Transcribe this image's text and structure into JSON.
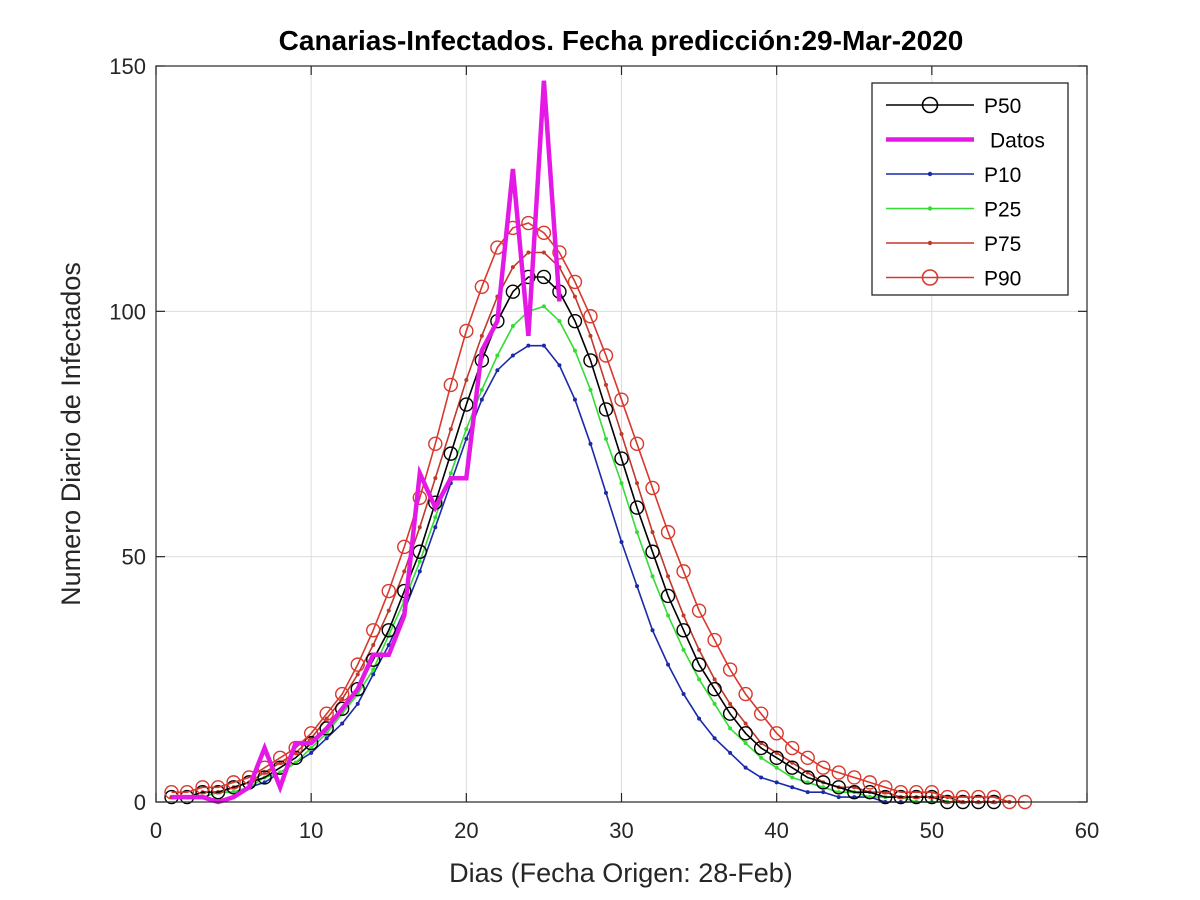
{
  "chart_data": {
    "type": "line",
    "title": "Canarias-Infectados. Fecha predicción:29-Mar-2020",
    "xlabel": "Dias (Fecha Origen: 28-Feb)",
    "ylabel": "Numero Diario de Infectados",
    "xlim": [
      0,
      60
    ],
    "ylim": [
      0,
      150
    ],
    "xticks": [
      0,
      10,
      20,
      30,
      40,
      50,
      60
    ],
    "yticks": [
      0,
      50,
      100,
      150
    ],
    "grid": true,
    "legend_position": "top-right",
    "series": [
      {
        "name": "P50",
        "color": "#000000",
        "marker": "circle-open",
        "x": [
          1,
          2,
          3,
          4,
          5,
          6,
          7,
          8,
          9,
          10,
          11,
          12,
          13,
          14,
          15,
          16,
          17,
          18,
          19,
          20,
          21,
          22,
          23,
          24,
          25,
          26,
          27,
          28,
          29,
          30,
          31,
          32,
          33,
          34,
          35,
          36,
          37,
          38,
          39,
          40,
          41,
          42,
          43,
          44,
          45,
          46,
          47,
          48,
          49,
          50,
          51,
          52,
          53,
          54
        ],
        "y": [
          1,
          1,
          2,
          2,
          3,
          4,
          5,
          7,
          9,
          12,
          15,
          19,
          23,
          29,
          35,
          43,
          51,
          61,
          71,
          81,
          90,
          98,
          104,
          107,
          107,
          104,
          98,
          90,
          80,
          70,
          60,
          51,
          42,
          35,
          28,
          23,
          18,
          14,
          11,
          9,
          7,
          5,
          4,
          3,
          2,
          2,
          1,
          1,
          1,
          1,
          0,
          0,
          0,
          0
        ]
      },
      {
        "name": "Datos",
        "color": "#e519e5",
        "marker": "none",
        "x": [
          1,
          2,
          3,
          4,
          5,
          6,
          7,
          8,
          9,
          10,
          11,
          12,
          13,
          14,
          15,
          16,
          17,
          18,
          19,
          20,
          21,
          22,
          23,
          24,
          25,
          26
        ],
        "y": [
          1,
          1,
          1,
          0,
          1,
          3,
          11,
          3,
          12,
          12,
          15,
          19,
          23,
          30,
          30,
          38,
          67,
          60,
          66,
          66,
          92,
          98,
          129,
          95,
          147,
          102
        ]
      },
      {
        "name": "P10",
        "color": "#1a2aa8",
        "marker": "dot",
        "x": [
          1,
          2,
          3,
          4,
          5,
          6,
          7,
          8,
          9,
          10,
          11,
          12,
          13,
          14,
          15,
          16,
          17,
          18,
          19,
          20,
          21,
          22,
          23,
          24,
          25,
          26,
          27,
          28,
          29,
          30,
          31,
          32,
          33,
          34,
          35,
          36,
          37,
          38,
          39,
          40,
          41,
          42,
          43,
          44,
          45,
          46,
          47,
          48,
          49,
          50,
          51
        ],
        "y": [
          1,
          1,
          1,
          2,
          2,
          3,
          4,
          6,
          8,
          10,
          13,
          16,
          20,
          26,
          32,
          39,
          47,
          56,
          65,
          74,
          82,
          88,
          91,
          93,
          93,
          89,
          82,
          73,
          63,
          53,
          44,
          35,
          28,
          22,
          17,
          13,
          10,
          7,
          5,
          4,
          3,
          2,
          2,
          1,
          1,
          1,
          0,
          0,
          0,
          0,
          0
        ]
      },
      {
        "name": "P25",
        "color": "#33dd33",
        "marker": "dot",
        "x": [
          1,
          2,
          3,
          4,
          5,
          6,
          7,
          8,
          9,
          10,
          11,
          12,
          13,
          14,
          15,
          16,
          17,
          18,
          19,
          20,
          21,
          22,
          23,
          24,
          25,
          26,
          27,
          28,
          29,
          30,
          31,
          32,
          33,
          34,
          35,
          36,
          37,
          38,
          39,
          40,
          41,
          42,
          43,
          44,
          45,
          46,
          47,
          48,
          49,
          50,
          51,
          52
        ],
        "y": [
          1,
          1,
          1,
          2,
          2,
          3,
          5,
          6,
          8,
          11,
          14,
          18,
          22,
          27,
          34,
          41,
          49,
          58,
          67,
          76,
          84,
          91,
          97,
          100,
          101,
          98,
          92,
          84,
          74,
          65,
          55,
          46,
          38,
          31,
          25,
          20,
          15,
          12,
          9,
          7,
          5,
          4,
          3,
          2,
          2,
          1,
          1,
          1,
          0,
          0,
          0,
          0
        ]
      },
      {
        "name": "P75",
        "color": "#c0392b",
        "marker": "dot",
        "x": [
          1,
          2,
          3,
          4,
          5,
          6,
          7,
          8,
          9,
          10,
          11,
          12,
          13,
          14,
          15,
          16,
          17,
          18,
          19,
          20,
          21,
          22,
          23,
          24,
          25,
          26,
          27,
          28,
          29,
          30,
          31,
          32,
          33,
          34,
          35,
          36,
          37,
          38,
          39,
          40,
          41,
          42,
          43,
          44,
          45,
          46,
          47,
          48,
          49,
          50,
          51,
          52,
          53,
          54,
          55
        ],
        "y": [
          1,
          1,
          2,
          2,
          3,
          4,
          6,
          8,
          10,
          13,
          17,
          21,
          26,
          32,
          39,
          47,
          56,
          66,
          76,
          86,
          95,
          103,
          109,
          112,
          112,
          109,
          103,
          95,
          85,
          75,
          65,
          55,
          46,
          38,
          31,
          25,
          20,
          16,
          12,
          10,
          8,
          6,
          4,
          3,
          3,
          2,
          2,
          1,
          1,
          1,
          1,
          0,
          0,
          0,
          0
        ]
      },
      {
        "name": "P90",
        "color": "#d9382d",
        "marker": "circle-open",
        "x": [
          1,
          2,
          3,
          4,
          5,
          6,
          7,
          8,
          9,
          10,
          11,
          12,
          13,
          14,
          15,
          16,
          17,
          18,
          19,
          20,
          21,
          22,
          23,
          24,
          25,
          26,
          27,
          28,
          29,
          30,
          31,
          32,
          33,
          34,
          35,
          36,
          37,
          38,
          39,
          40,
          41,
          42,
          43,
          44,
          45,
          46,
          47,
          48,
          49,
          50,
          51,
          52,
          53,
          54,
          55,
          56
        ],
        "y": [
          2,
          2,
          3,
          3,
          4,
          5,
          7,
          9,
          11,
          14,
          18,
          22,
          28,
          35,
          43,
          52,
          62,
          73,
          85,
          96,
          105,
          113,
          117,
          118,
          116,
          112,
          106,
          99,
          91,
          82,
          73,
          64,
          55,
          47,
          39,
          33,
          27,
          22,
          18,
          14,
          11,
          9,
          7,
          6,
          5,
          4,
          3,
          2,
          2,
          2,
          1,
          1,
          1,
          1,
          0,
          0
        ]
      }
    ]
  }
}
